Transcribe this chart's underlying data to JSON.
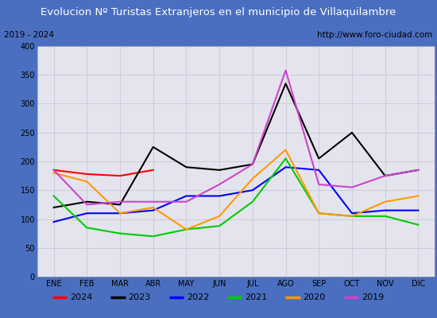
{
  "title": "Evolucion Nº Turistas Extranjeros en el municipio de Villaquilambre",
  "subtitle_left": "2019 - 2024",
  "subtitle_right": "http://www.foro-ciudad.com",
  "title_bg_color": "#4a6fc0",
  "title_text_color": "#ffffff",
  "subtitle_bg_color": "#ffffff",
  "plot_bg_color": "#e4e4ee",
  "outer_bg_color": "#4a6fc0",
  "months": [
    "ENE",
    "FEB",
    "MAR",
    "ABR",
    "MAY",
    "JUN",
    "JUL",
    "AGO",
    "SEP",
    "OCT",
    "NOV",
    "DIC"
  ],
  "series": {
    "2024": {
      "color": "#ff0000",
      "values": [
        185,
        178,
        175,
        185,
        null,
        null,
        null,
        null,
        null,
        null,
        null,
        null
      ]
    },
    "2023": {
      "color": "#000000",
      "values": [
        120,
        130,
        125,
        225,
        190,
        185,
        195,
        335,
        205,
        250,
        175,
        185
      ]
    },
    "2022": {
      "color": "#0000ff",
      "values": [
        95,
        110,
        110,
        115,
        140,
        140,
        150,
        190,
        185,
        110,
        115,
        115
      ]
    },
    "2021": {
      "color": "#00cc00",
      "values": [
        140,
        85,
        75,
        70,
        82,
        88,
        130,
        205,
        110,
        105,
        105,
        90
      ]
    },
    "2020": {
      "color": "#ff9900",
      "values": [
        180,
        165,
        110,
        120,
        82,
        105,
        170,
        220,
        110,
        105,
        130,
        140
      ]
    },
    "2019": {
      "color": "#cc44cc",
      "values": [
        185,
        125,
        130,
        130,
        130,
        160,
        195,
        358,
        160,
        155,
        175,
        185
      ]
    }
  },
  "ylim": [
    0,
    400
  ],
  "yticks": [
    0,
    50,
    100,
    150,
    200,
    250,
    300,
    350,
    400
  ],
  "legend_order": [
    "2024",
    "2023",
    "2022",
    "2021",
    "2020",
    "2019"
  ],
  "grid_color": "#c8c8d8"
}
